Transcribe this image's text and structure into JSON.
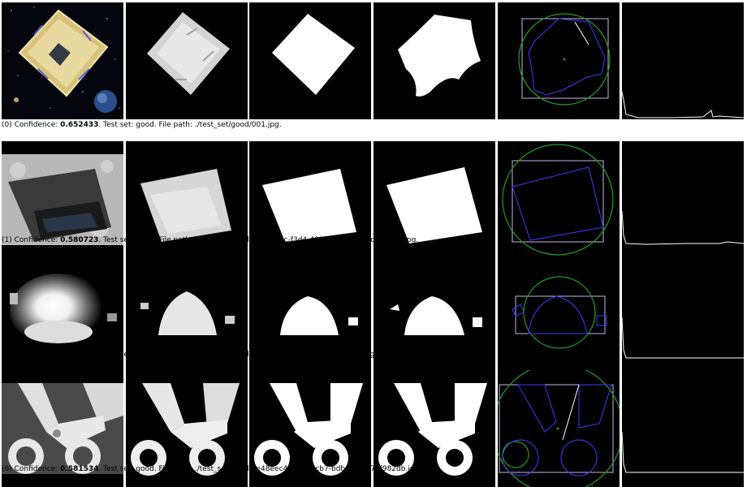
{
  "rows": [
    {
      "index": "(0)",
      "confidence_label": "Confidence:",
      "confidence_value": "0.652433",
      "test_set_label": ". Test set:",
      "test_set": "good",
      "file_path_label": ". File path:",
      "file_path": "./test_set/good/001.jpg",
      "end": ".",
      "subject": "solar-sail-spacecraft"
    },
    {
      "index": "(1)",
      "confidence_label": "Confidence:",
      "confidence_value": "0.580723",
      "test_set_label": ". Test set:",
      "test_set": "good",
      "file_path_label": ". File path:",
      "file_path": "./test_set/good/0b60ba6c-f3d4-483f-aad2-2f294cb9bb27.jpg",
      "end": ".",
      "subject": "tablet-with-cover"
    },
    {
      "index": "(4)",
      "confidence_label": "Confidence:",
      "confidence_value": "0.706374",
      "test_set_label": ". Test set:",
      "test_set": "good",
      "file_path_label": ". File path:",
      "file_path": "./test_set/good/18250297731_52e12539b0_b.jpg",
      "end": ".",
      "subject": "bright-light-scene"
    },
    {
      "index": "(6)",
      "confidence_label": "Confidence:",
      "confidence_value": "0.581534",
      "test_set_label": ". Test set:",
      "test_set": "good",
      "file_path_label": ". File path:",
      "file_path": "./test_set/good/1e48eec4-bacb-4cb7-bdb0-548c72f982db.jpg",
      "end": ".",
      "subject": "scissors"
    }
  ],
  "colors": {
    "background": "#ffffff",
    "tile_background": "#000000",
    "contour": "#3a3aff",
    "bounding_box": "#c8b4e6",
    "enclosing_circle": "#1fa01f",
    "histogram": "#ffffff"
  }
}
